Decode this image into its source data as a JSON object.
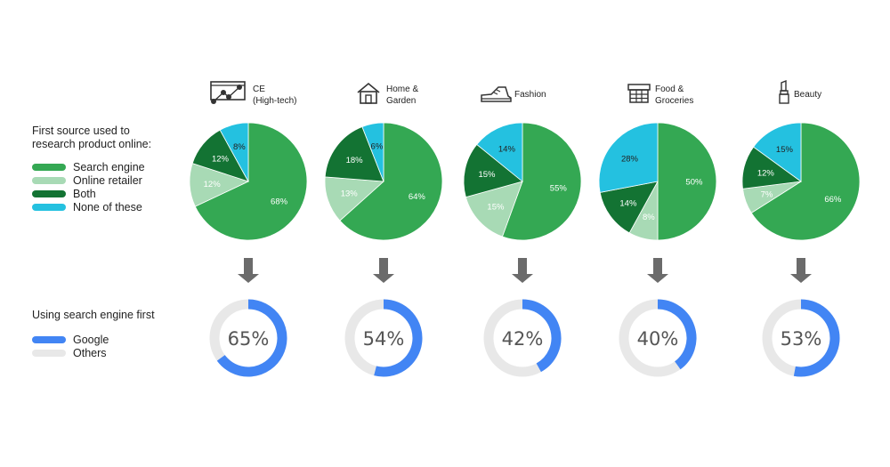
{
  "legend_sources": {
    "title": "First source used to research product online:",
    "items": [
      {
        "label": "Search engine",
        "color": "#34a853"
      },
      {
        "label": "Online retailer",
        "color": "#a8dab5"
      },
      {
        "label": "Both",
        "color": "#137333"
      },
      {
        "label": "None of these",
        "color": "#24c1e0"
      }
    ]
  },
  "legend_google": {
    "title": "Using search engine first",
    "items": [
      {
        "label": "Google",
        "color": "#4285f4"
      },
      {
        "label": "Others",
        "color": "#e8e8e8"
      }
    ]
  },
  "categories": [
    {
      "name": "CE\n(High-tech)",
      "icon": "ce-hightech-icon"
    },
    {
      "name": "Home &\nGarden",
      "icon": "house-icon"
    },
    {
      "name": "Fashion",
      "icon": "shoe-icon"
    },
    {
      "name": "Food &\nGroceries",
      "icon": "grocery-basket-icon"
    },
    {
      "name": "Beauty",
      "icon": "lipstick-icon"
    }
  ],
  "chart_data": [
    {
      "type": "pie",
      "title": "First source used to research product online:",
      "categories": [
        "CE (High-tech)",
        "Home & Garden",
        "Fashion",
        "Food & Groceries",
        "Beauty"
      ],
      "series": [
        {
          "name": "Search engine",
          "values": [
            68,
            64,
            55,
            50,
            66
          ]
        },
        {
          "name": "Online retailer",
          "values": [
            12,
            13,
            15,
            8,
            7
          ]
        },
        {
          "name": "Both",
          "values": [
            12,
            18,
            15,
            14,
            12
          ]
        },
        {
          "name": "None of these",
          "values": [
            8,
            6,
            14,
            28,
            15
          ]
        }
      ]
    },
    {
      "type": "pie",
      "title": "Using search engine first",
      "categories": [
        "CE (High-tech)",
        "Home & Garden",
        "Fashion",
        "Food & Groceries",
        "Beauty"
      ],
      "series": [
        {
          "name": "Google",
          "values": [
            65,
            54,
            42,
            40,
            53
          ]
        }
      ]
    }
  ]
}
